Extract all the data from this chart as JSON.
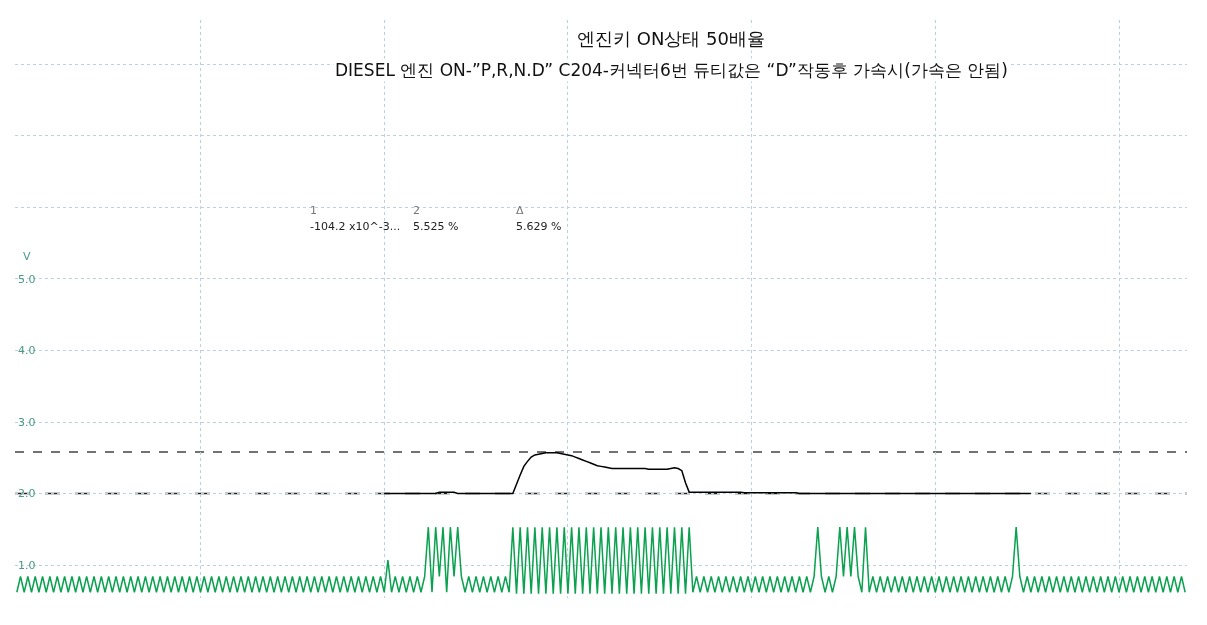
{
  "chart_data": {
    "type": "line",
    "title": "엔진키 ON상태 50배율",
    "subtitle": "DIESEL 엔진 ON-”P,R,N.D” C204-커넥터6번 듀티값은 “D”작동후 가속시(가속은 안됨)",
    "ylabel": "V",
    "annotations": [
      "1",
      "2",
      "Δ",
      "-104.2 x10^-3...",
      "5.525 %",
      "5.629 %"
    ],
    "categories": [
      null,
      null,
      null,
      null,
      null,
      null,
      null,
      null,
      null,
      null,
      null,
      null,
      null,
      null,
      null,
      null,
      null,
      null,
      null,
      null,
      null,
      null,
      null,
      null,
      null,
      null,
      null,
      null,
      null,
      null,
      null,
      null,
      null,
      null,
      null,
      null,
      null,
      null,
      null,
      null,
      null,
      null,
      null,
      null,
      null,
      null,
      null,
      null,
      null,
      null,
      null,
      null,
      null,
      null,
      null,
      null,
      null,
      null,
      null,
      null,
      null,
      null,
      null,
      null,
      null,
      null,
      null,
      null,
      null,
      null,
      null,
      null,
      null,
      null,
      null,
      null,
      null,
      null,
      null,
      null,
      null,
      null,
      null,
      null,
      null,
      null,
      null,
      null,
      null,
      null,
      null,
      null,
      null,
      null,
      null,
      null,
      null,
      null,
      null,
      null,
      null,
      null,
      null,
      null,
      null,
      null,
      null,
      null,
      null,
      null,
      null,
      null,
      null,
      null,
      null,
      null,
      null,
      null,
      null,
      null,
      null,
      null,
      null,
      null,
      null,
      null,
      null,
      null,
      null,
      null,
      null,
      null,
      null,
      null,
      null,
      null,
      null,
      null,
      null,
      null,
      null,
      null,
      null,
      null,
      null,
      null,
      null,
      null,
      null,
      null,
      null,
      null,
      null,
      null,
      null,
      null,
      null,
      null,
      null,
      null,
      null,
      null,
      null,
      null,
      null,
      null,
      null,
      null,
      null,
      null,
      null,
      null,
      null,
      null,
      null,
      null,
      null,
      null,
      null,
      null,
      null,
      null,
      null,
      null,
      null,
      null,
      null,
      null,
      null,
      null,
      null,
      null,
      null,
      null,
      null,
      null,
      null,
      null,
      null,
      null,
      null,
      null,
      null,
      null,
      null,
      null,
      null,
      null,
      null,
      null,
      null,
      null,
      null,
      null,
      null,
      null,
      null,
      null,
      null,
      null,
      null,
      null,
      null,
      null,
      null,
      null,
      null,
      null,
      null,
      null,
      null,
      null,
      null,
      null,
      null,
      null,
      null,
      null,
      null,
      null,
      null,
      null,
      null,
      null,
      null,
      null,
      null,
      null,
      null,
      null,
      null,
      null,
      null,
      null,
      null,
      null,
      null,
      null,
      null,
      null,
      null,
      null,
      null,
      null,
      null,
      null,
      null,
      null,
      null,
      null,
      null,
      null,
      null,
      null,
      null,
      null,
      null,
      null,
      null,
      null,
      null,
      null,
      null,
      null,
      null,
      null,
      null,
      null,
      null,
      null,
      null,
      null,
      null,
      null,
      null,
      null,
      null,
      null,
      null,
      null,
      null,
      null,
      null,
      null,
      null,
      null,
      null,
      null,
      null,
      null,
      null,
      null,
      null,
      null,
      null,
      null,
      null,
      null,
      null
    ],
    "ylim": [
      0.54,
      8.62
    ],
    "yticks": [
      {
        "value": 1,
        "label": "1.0"
      },
      {
        "value": 2,
        "label": "2.0"
      },
      {
        "value": 3,
        "label": "3.0"
      },
      {
        "value": 4,
        "label": "4.0"
      },
      {
        "value": 5,
        "label": "5.0"
      },
      {
        "value": 6,
        "label": null
      },
      {
        "value": 7,
        "label": null
      },
      {
        "value": 8,
        "label": null
      }
    ],
    "tick_labels": "y",
    "grid": true,
    "line_style": "solid",
    "ref_lines": [
      {
        "axis": "y",
        "value": 2.58,
        "color": "#444444",
        "line_style": "dashed"
      },
      {
        "axis": "y",
        "value": 2.0,
        "color": "#222222",
        "line_style": "dashed"
      }
    ],
    "series": [
      {
        "color": "#0aa14f",
        "values": [
          0.62,
          0.84,
          0.62,
          0.84,
          0.62,
          0.84,
          0.62,
          0.84,
          0.62,
          0.84,
          0.62,
          0.84,
          0.62,
          0.84,
          0.62,
          0.84,
          0.62,
          0.84,
          0.62,
          0.84,
          0.62,
          0.84,
          0.62,
          0.84,
          0.62,
          0.84,
          0.62,
          0.84,
          0.62,
          0.84,
          0.62,
          0.84,
          0.62,
          0.84,
          0.62,
          0.84,
          0.62,
          0.84,
          0.62,
          0.84,
          0.62,
          0.84,
          0.62,
          0.84,
          0.62,
          0.84,
          0.62,
          0.84,
          0.62,
          0.84,
          0.62,
          0.84,
          0.62,
          0.84,
          0.62,
          0.84,
          0.62,
          0.84,
          0.62,
          0.84,
          0.62,
          0.84,
          0.62,
          0.84,
          0.62,
          0.84,
          0.62,
          0.84,
          0.62,
          0.84,
          0.62,
          0.84,
          0.62,
          0.84,
          0.62,
          0.84,
          0.62,
          0.84,
          0.62,
          0.84,
          0.62,
          0.84,
          0.62,
          0.84,
          0.62,
          0.84,
          0.62,
          0.84,
          0.62,
          0.84,
          0.62,
          0.84,
          0.62,
          0.84,
          0.62,
          0.84,
          0.62,
          0.84,
          0.62,
          0.84,
          0.62,
          1.07,
          0.62,
          0.84,
          0.62,
          0.84,
          0.62,
          0.84,
          0.62,
          0.84,
          0.62,
          0.84,
          1.53,
          0.62,
          1.53,
          0.84,
          1.53,
          0.62,
          1.53,
          0.84,
          1.53,
          0.84,
          0.62,
          0.84,
          0.62,
          0.84,
          0.62,
          0.84,
          0.62,
          0.84,
          0.62,
          0.84,
          0.62,
          0.84,
          0.62,
          1.53,
          0.6,
          1.53,
          0.6,
          1.53,
          0.6,
          1.53,
          0.6,
          1.53,
          0.6,
          1.53,
          0.6,
          1.53,
          0.6,
          1.53,
          0.6,
          1.53,
          0.6,
          1.53,
          0.6,
          1.53,
          0.6,
          1.53,
          0.6,
          1.53,
          0.6,
          1.53,
          0.6,
          1.53,
          0.6,
          1.53,
          0.6,
          1.53,
          0.6,
          1.53,
          0.6,
          1.53,
          0.6,
          1.53,
          0.6,
          1.53,
          0.6,
          1.53,
          0.6,
          1.53,
          0.6,
          1.53,
          0.6,
          1.53,
          0.62,
          0.84,
          0.62,
          0.84,
          0.62,
          0.84,
          0.62,
          0.84,
          0.62,
          0.84,
          0.62,
          0.84,
          0.62,
          0.84,
          0.62,
          0.84,
          0.62,
          0.84,
          0.62,
          0.84,
          0.62,
          0.84,
          0.62,
          0.84,
          0.62,
          0.84,
          0.62,
          0.84,
          0.62,
          0.84,
          0.62,
          0.84,
          0.62,
          0.84,
          1.53,
          0.84,
          0.62,
          0.84,
          0.62,
          0.84,
          1.53,
          0.84,
          1.53,
          0.84,
          1.53,
          0.84,
          0.62,
          1.53,
          0.62,
          0.84,
          0.62,
          0.84,
          0.62,
          0.84,
          0.62,
          0.84,
          0.62,
          0.84,
          0.62,
          0.84,
          0.62,
          0.84,
          0.62,
          0.84,
          0.62,
          0.84,
          0.62,
          0.84,
          0.62,
          0.84,
          0.62,
          0.84,
          0.62,
          0.84,
          0.62,
          0.84,
          0.62,
          0.84,
          0.62,
          0.84,
          0.62,
          0.84,
          0.62,
          0.84,
          0.62,
          0.84,
          0.62,
          0.84,
          1.53,
          0.84,
          0.62,
          0.84,
          0.62,
          0.84,
          0.62,
          0.84,
          0.62,
          0.84,
          0.62,
          0.84,
          0.62,
          0.84,
          0.62,
          0.84,
          0.62,
          0.84,
          0.62,
          0.84,
          0.62,
          0.84,
          0.62,
          0.84,
          0.62,
          0.84,
          0.62,
          0.84,
          0.62,
          0.84,
          0.62,
          0.84,
          0.62,
          0.84,
          0.62,
          0.84,
          0.62,
          0.84,
          0.62,
          0.84,
          0.62,
          0.84,
          0.62,
          0.84,
          0.62,
          0.84,
          0.62
        ]
      },
      {
        "color": "#000000",
        "values": [
          null,
          null,
          null,
          null,
          null,
          null,
          null,
          null,
          null,
          null,
          null,
          null,
          null,
          null,
          null,
          null,
          null,
          null,
          null,
          null,
          null,
          null,
          null,
          null,
          null,
          null,
          null,
          null,
          null,
          null,
          null,
          null,
          null,
          null,
          null,
          null,
          null,
          null,
          null,
          null,
          null,
          null,
          null,
          null,
          null,
          null,
          null,
          null,
          null,
          null,
          null,
          null,
          null,
          null,
          null,
          null,
          null,
          null,
          null,
          null,
          null,
          null,
          null,
          null,
          null,
          null,
          null,
          null,
          null,
          null,
          null,
          null,
          null,
          null,
          null,
          null,
          null,
          null,
          null,
          null,
          null,
          null,
          null,
          null,
          null,
          null,
          null,
          null,
          null,
          null,
          null,
          null,
          null,
          null,
          null,
          null,
          null,
          null,
          null,
          null,
          2.0,
          2.0,
          2.0,
          2.0,
          2.0,
          2.0,
          2.0,
          2.0,
          2.0,
          2.0,
          2.0,
          2.0,
          2.0,
          2.0,
          2.0,
          2.02,
          2.02,
          2.02,
          2.02,
          2.02,
          2.0,
          2.0,
          2.0,
          2.0,
          2.0,
          2.0,
          2.0,
          2.0,
          2.0,
          2.0,
          2.0,
          2.0,
          2.0,
          2.0,
          2.0,
          2.0,
          2.13,
          2.26,
          2.38,
          2.45,
          2.51,
          2.54,
          2.55,
          2.56,
          2.57,
          2.57,
          2.57,
          2.57,
          2.56,
          2.55,
          2.54,
          2.53,
          2.51,
          2.49,
          2.47,
          2.45,
          2.43,
          2.41,
          2.39,
          2.38,
          2.37,
          2.36,
          2.35,
          2.35,
          2.35,
          2.35,
          2.35,
          2.35,
          2.35,
          2.35,
          2.35,
          2.35,
          2.34,
          2.34,
          2.34,
          2.34,
          2.34,
          2.34,
          2.35,
          2.36,
          2.35,
          2.32,
          2.15,
          2.02,
          2.02,
          2.02,
          2.02,
          2.02,
          2.02,
          2.02,
          2.02,
          2.02,
          2.02,
          2.02,
          2.02,
          2.02,
          2.02,
          2.02,
          2.01,
          2.01,
          2.01,
          2.01,
          2.01,
          2.01,
          2.01,
          2.01,
          2.01,
          2.01,
          2.01,
          2.01,
          2.01,
          2.01,
          2.01,
          2.0,
          2.0,
          2.0,
          2.0,
          2.0,
          2.0,
          2.0,
          2.0,
          2.0,
          2.0,
          2.0,
          2.0,
          2.0,
          2.0,
          2.0,
          2.0,
          2.0,
          2.0,
          2.0,
          2.0,
          2.0,
          2.0,
          2.0,
          2.0,
          2.0,
          2.0,
          2.0,
          2.0,
          2.0,
          2.0,
          2.0,
          2.0,
          2.0,
          2.0,
          2.0,
          2.0,
          2.0,
          2.0,
          2.0,
          2.0,
          2.0,
          2.0,
          2.0,
          2.0,
          2.0,
          2.0,
          2.0,
          2.0,
          2.0,
          2.0,
          2.0,
          2.0,
          2.0,
          2.0,
          2.0,
          2.0,
          2.0,
          2.0,
          2.0,
          2.0,
          2.0,
          2.0,
          2.0,
          2.0,
          null,
          null,
          null,
          null,
          null,
          null,
          null,
          null,
          null,
          null,
          null,
          null,
          null,
          null,
          null,
          null,
          null,
          null,
          null,
          null,
          null,
          null,
          null,
          null,
          null,
          null,
          null,
          null,
          null,
          null,
          null,
          null,
          null,
          null,
          null,
          null,
          null,
          null,
          null,
          null,
          null,
          null
        ]
      }
    ]
  }
}
